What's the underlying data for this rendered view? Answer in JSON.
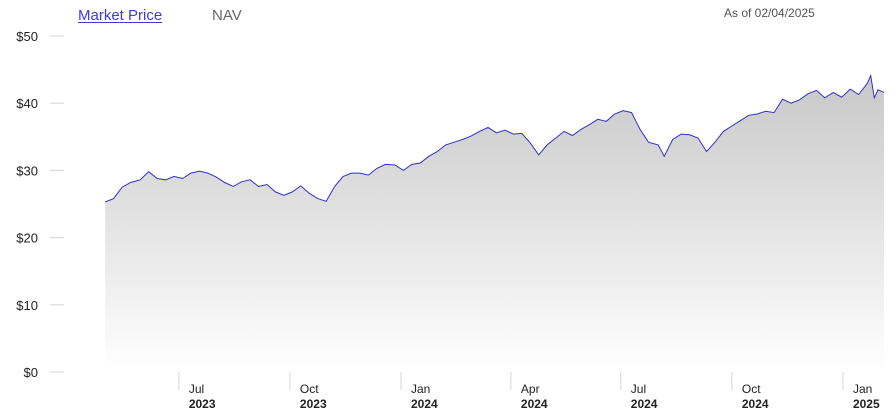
{
  "tabs": [
    {
      "label": "Market Price",
      "active": true
    },
    {
      "label": "NAV",
      "active": false
    }
  ],
  "as_of": "As of 02/04/2025",
  "colors": {
    "line": "#3030c8",
    "area_top": "#c8c8c8",
    "area_bottom": "#ffffff",
    "active_tab": "#3d3dd6"
  },
  "chart_data": {
    "type": "area",
    "title": "",
    "xlabel": "",
    "ylabel": "",
    "ylim": [
      0,
      50
    ],
    "xlim": [
      "2023-05-01",
      "2025-02-04"
    ],
    "yticks": [
      "$0",
      "$10",
      "$20",
      "$30",
      "$40",
      "$50"
    ],
    "xticks": [
      {
        "month": "Jul",
        "year": "2023",
        "date": "2023-07-01"
      },
      {
        "month": "Oct",
        "year": "2023",
        "date": "2023-10-01"
      },
      {
        "month": "Jan",
        "year": "2024",
        "date": "2024-01-01"
      },
      {
        "month": "Apr",
        "year": "2024",
        "date": "2024-04-01"
      },
      {
        "month": "Jul",
        "year": "2024",
        "date": "2024-07-01"
      },
      {
        "month": "Oct",
        "year": "2024",
        "date": "2024-10-01"
      },
      {
        "month": "Jan",
        "year": "2025",
        "date": "2025-01-01"
      }
    ],
    "grid": false,
    "series": [
      {
        "points": [
          [
            "2023-05-01",
            25.3
          ],
          [
            "2023-05-08",
            25.8
          ],
          [
            "2023-05-15",
            27.5
          ],
          [
            "2023-05-22",
            28.2
          ],
          [
            "2023-05-30",
            28.6
          ],
          [
            "2023-06-06",
            29.8
          ],
          [
            "2023-06-13",
            28.8
          ],
          [
            "2023-06-20",
            28.6
          ],
          [
            "2023-06-27",
            29.1
          ],
          [
            "2023-07-04",
            28.8
          ],
          [
            "2023-07-11",
            29.6
          ],
          [
            "2023-07-18",
            29.9
          ],
          [
            "2023-07-25",
            29.6
          ],
          [
            "2023-08-01",
            29.0
          ],
          [
            "2023-08-08",
            28.2
          ],
          [
            "2023-08-15",
            27.6
          ],
          [
            "2023-08-22",
            28.3
          ],
          [
            "2023-08-29",
            28.6
          ],
          [
            "2023-09-05",
            27.6
          ],
          [
            "2023-09-12",
            27.9
          ],
          [
            "2023-09-19",
            26.8
          ],
          [
            "2023-09-26",
            26.3
          ],
          [
            "2023-10-03",
            26.8
          ],
          [
            "2023-10-10",
            27.7
          ],
          [
            "2023-10-17",
            26.6
          ],
          [
            "2023-10-24",
            25.8
          ],
          [
            "2023-10-31",
            25.4
          ],
          [
            "2023-11-07",
            27.6
          ],
          [
            "2023-11-14",
            29.1
          ],
          [
            "2023-11-21",
            29.6
          ],
          [
            "2023-11-28",
            29.6
          ],
          [
            "2023-12-05",
            29.3
          ],
          [
            "2023-12-12",
            30.3
          ],
          [
            "2023-12-19",
            30.9
          ],
          [
            "2023-12-27",
            30.8
          ],
          [
            "2024-01-03",
            30.0
          ],
          [
            "2024-01-10",
            30.9
          ],
          [
            "2024-01-17",
            31.1
          ],
          [
            "2024-01-24",
            32.1
          ],
          [
            "2024-01-31",
            32.8
          ],
          [
            "2024-02-07",
            33.8
          ],
          [
            "2024-02-14",
            34.2
          ],
          [
            "2024-02-21",
            34.6
          ],
          [
            "2024-02-28",
            35.1
          ],
          [
            "2024-03-06",
            35.8
          ],
          [
            "2024-03-13",
            36.4
          ],
          [
            "2024-03-20",
            35.6
          ],
          [
            "2024-03-27",
            36.0
          ],
          [
            "2024-04-03",
            35.4
          ],
          [
            "2024-04-10",
            35.5
          ],
          [
            "2024-04-17",
            34.1
          ],
          [
            "2024-04-24",
            32.3
          ],
          [
            "2024-05-01",
            33.8
          ],
          [
            "2024-05-08",
            34.8
          ],
          [
            "2024-05-15",
            35.8
          ],
          [
            "2024-05-22",
            35.2
          ],
          [
            "2024-05-29",
            36.1
          ],
          [
            "2024-06-05",
            36.8
          ],
          [
            "2024-06-12",
            37.6
          ],
          [
            "2024-06-19",
            37.3
          ],
          [
            "2024-06-26",
            38.4
          ],
          [
            "2024-07-03",
            38.9
          ],
          [
            "2024-07-10",
            38.6
          ],
          [
            "2024-07-17",
            36.1
          ],
          [
            "2024-07-24",
            34.2
          ],
          [
            "2024-08-01",
            33.8
          ],
          [
            "2024-08-06",
            32.1
          ],
          [
            "2024-08-13",
            34.6
          ],
          [
            "2024-08-20",
            35.4
          ],
          [
            "2024-08-27",
            35.3
          ],
          [
            "2024-09-03",
            34.8
          ],
          [
            "2024-09-10",
            32.8
          ],
          [
            "2024-09-17",
            34.2
          ],
          [
            "2024-09-24",
            35.8
          ],
          [
            "2024-10-01",
            36.6
          ],
          [
            "2024-10-08",
            37.4
          ],
          [
            "2024-10-15",
            38.2
          ],
          [
            "2024-10-22",
            38.4
          ],
          [
            "2024-10-29",
            38.8
          ],
          [
            "2024-11-05",
            38.6
          ],
          [
            "2024-11-12",
            40.6
          ],
          [
            "2024-11-19",
            40.0
          ],
          [
            "2024-11-26",
            40.5
          ],
          [
            "2024-12-03",
            41.4
          ],
          [
            "2024-12-10",
            41.9
          ],
          [
            "2024-12-17",
            40.8
          ],
          [
            "2024-12-24",
            41.6
          ],
          [
            "2024-12-31",
            40.9
          ],
          [
            "2025-01-07",
            42.1
          ],
          [
            "2025-01-14",
            41.3
          ],
          [
            "2025-01-21",
            42.9
          ],
          [
            "2025-01-24",
            44.1
          ],
          [
            "2025-01-27",
            40.8
          ],
          [
            "2025-01-30",
            42.0
          ],
          [
            "2025-02-04",
            41.6
          ]
        ]
      }
    ]
  }
}
